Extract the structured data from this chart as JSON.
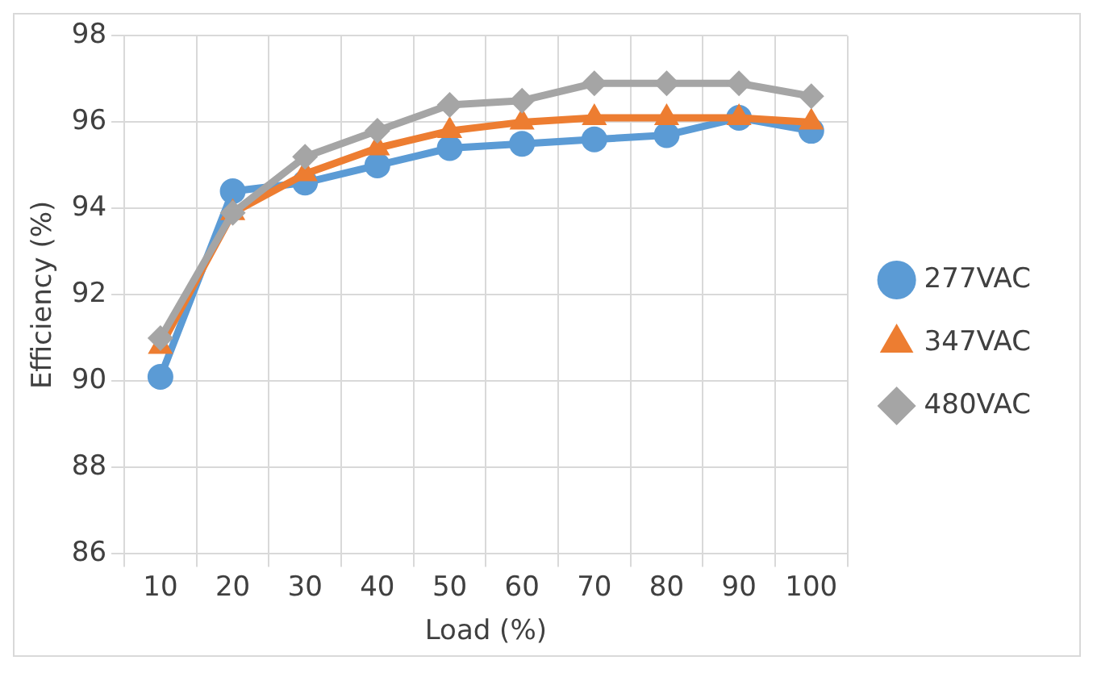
{
  "chart_data": {
    "type": "line",
    "xlabel": "Load (%)",
    "ylabel": "Efficiency (%)",
    "categories": [
      "10",
      "20",
      "30",
      "40",
      "50",
      "60",
      "70",
      "80",
      "90",
      "100"
    ],
    "series": [
      {
        "name": "277VAC",
        "color": "#5b9bd5",
        "marker": "circle",
        "values": [
          90.1,
          94.4,
          94.6,
          95.0,
          95.4,
          95.5,
          95.6,
          95.7,
          96.1,
          95.8
        ]
      },
      {
        "name": "347VAC",
        "color": "#ed7d31",
        "marker": "triangle",
        "values": [
          90.8,
          93.9,
          94.8,
          95.4,
          95.8,
          96.0,
          96.1,
          96.1,
          96.1,
          96.0
        ]
      },
      {
        "name": "480VAC",
        "color": "#a5a5a5",
        "marker": "diamond",
        "values": [
          91.0,
          93.9,
          95.2,
          95.8,
          96.4,
          96.5,
          96.9,
          96.9,
          96.9,
          96.6
        ]
      }
    ],
    "ylim": [
      86,
      98
    ],
    "yticks": [
      86,
      88,
      90,
      92,
      94,
      96,
      98
    ],
    "grid": true,
    "legend": "right",
    "line_style": "solid"
  }
}
